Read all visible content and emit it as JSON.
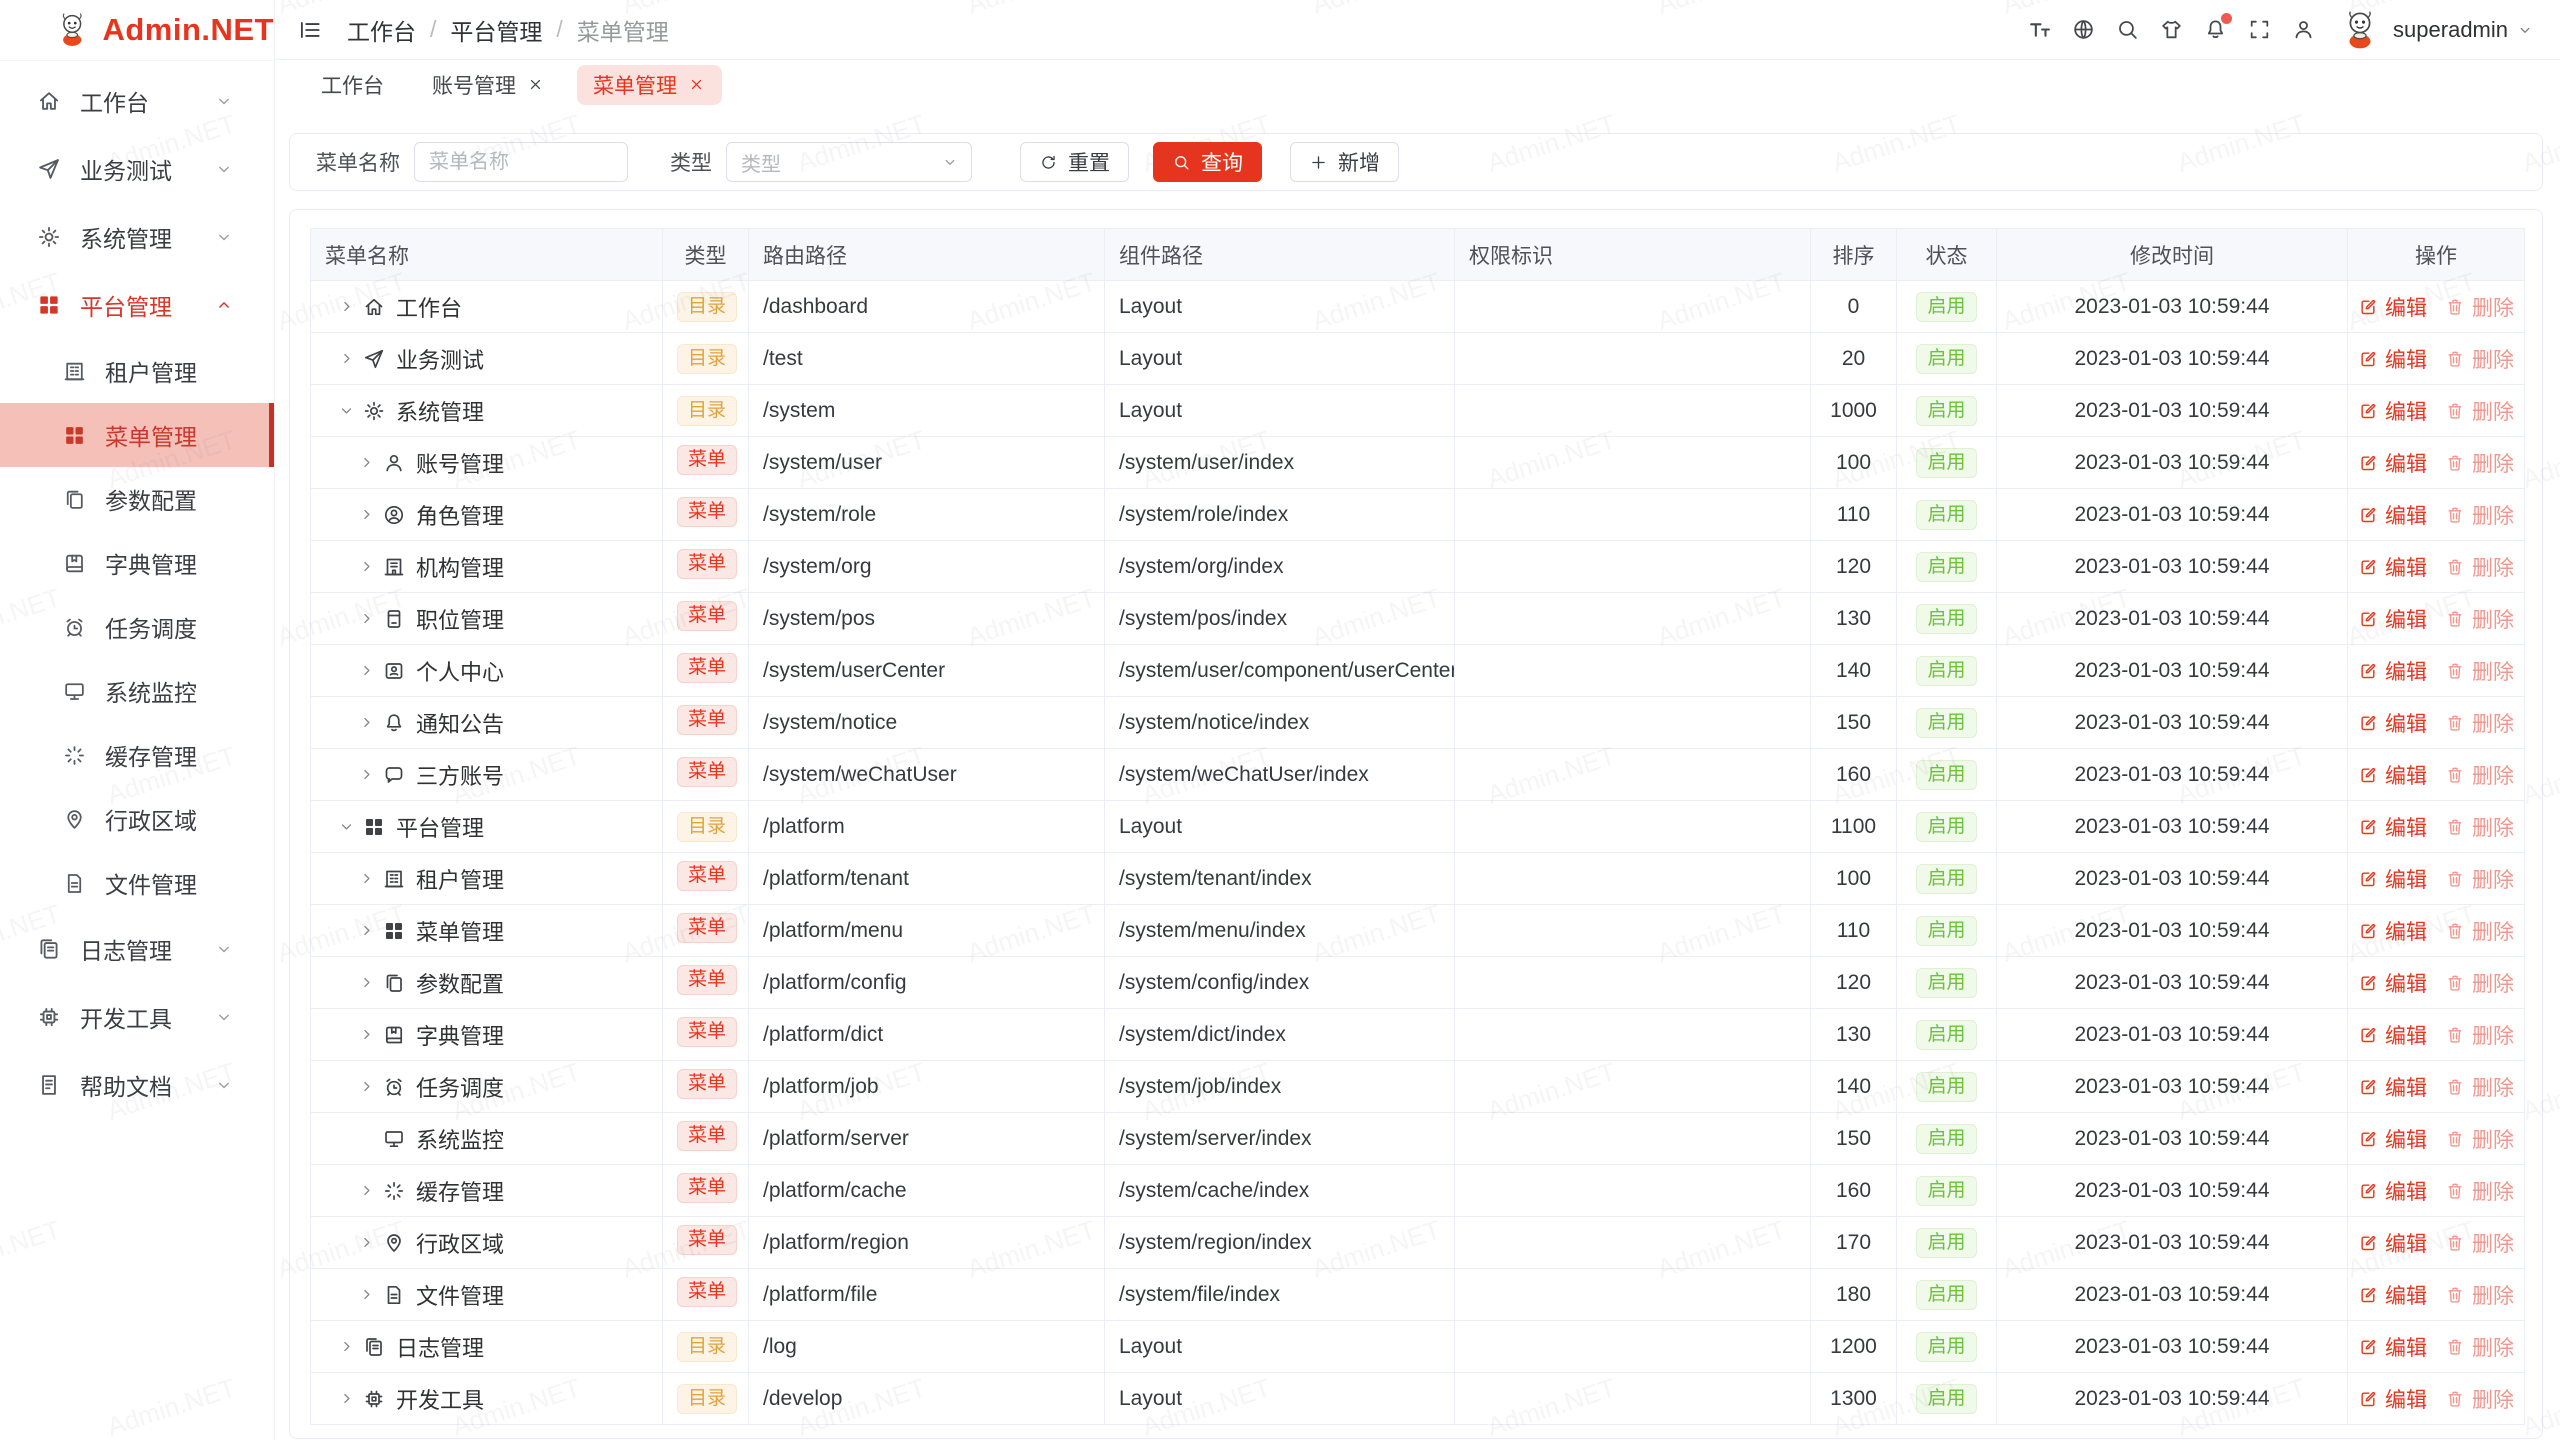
{
  "app": {
    "logo_text": "Admin.NET",
    "watermark": "Admin.NET"
  },
  "colors": {
    "primary": "#e8341f",
    "sidebar_active_bg": "#f4c0b8",
    "tab_active_bg": "#fbe2de",
    "dir_badge": "#e2a23c",
    "menu_badge": "#e8341f",
    "status_enabled": "#6ec23a"
  },
  "sidebar": {
    "items": [
      {
        "label": "工作台",
        "icon": "home",
        "chevron": "down"
      },
      {
        "label": "业务测试",
        "icon": "send",
        "chevron": "down"
      },
      {
        "label": "系统管理",
        "icon": "gear",
        "chevron": "down"
      },
      {
        "label": "平台管理",
        "icon": "grid",
        "chevron": "up",
        "active": true,
        "children": [
          {
            "label": "租户管理",
            "icon": "tenant"
          },
          {
            "label": "菜单管理",
            "icon": "grid",
            "active": true
          },
          {
            "label": "参数配置",
            "icon": "copydoc"
          },
          {
            "label": "字典管理",
            "icon": "book"
          },
          {
            "label": "任务调度",
            "icon": "clock"
          },
          {
            "label": "系统监控",
            "icon": "monitor"
          },
          {
            "label": "缓存管理",
            "icon": "spinner"
          },
          {
            "label": "行政区域",
            "icon": "pin"
          },
          {
            "label": "文件管理",
            "icon": "doc"
          }
        ]
      },
      {
        "label": "日志管理",
        "icon": "logs",
        "chevron": "down"
      },
      {
        "label": "开发工具",
        "icon": "chip",
        "chevron": "down"
      },
      {
        "label": "帮助文档",
        "icon": "help",
        "chevron": "down"
      }
    ]
  },
  "header": {
    "breadcrumb": [
      "工作台",
      "平台管理",
      "菜单管理"
    ],
    "breadcrumb_separator": "/",
    "icons": [
      "font-size",
      "language",
      "search",
      "theme",
      "notification",
      "fullscreen",
      "profile"
    ],
    "user": "superadmin"
  },
  "tabs": [
    {
      "label": "工作台",
      "closable": false,
      "active": false
    },
    {
      "label": "账号管理",
      "closable": true,
      "active": false
    },
    {
      "label": "菜单管理",
      "closable": true,
      "active": true
    }
  ],
  "filter": {
    "name_label": "菜单名称",
    "name_placeholder": "菜单名称",
    "name_value": "",
    "type_label": "类型",
    "type_placeholder": "类型",
    "reset_label": "重置",
    "search_label": "查询",
    "add_label": "新增"
  },
  "table": {
    "columns": [
      "菜单名称",
      "类型",
      "路由路径",
      "组件路径",
      "权限标识",
      "排序",
      "状态",
      "修改时间",
      "操作"
    ],
    "badge_labels": {
      "dir": "目录",
      "menu": "菜单"
    },
    "action_labels": {
      "edit": "编辑",
      "delete": "删除"
    },
    "rows": [
      {
        "name": "工作台",
        "icon": "home",
        "level": 0,
        "arrow": "right",
        "type": "dir",
        "route": "/dashboard",
        "component": "Layout",
        "perm": "",
        "sort": "0",
        "status": "启用",
        "time": "2023-01-03 10:59:44"
      },
      {
        "name": "业务测试",
        "icon": "send",
        "level": 0,
        "arrow": "right",
        "type": "dir",
        "route": "/test",
        "component": "Layout",
        "perm": "",
        "sort": "20",
        "status": "启用",
        "time": "2023-01-03 10:59:44"
      },
      {
        "name": "系统管理",
        "icon": "gear",
        "level": 0,
        "arrow": "down",
        "type": "dir",
        "route": "/system",
        "component": "Layout",
        "perm": "",
        "sort": "1000",
        "status": "启用",
        "time": "2023-01-03 10:59:44"
      },
      {
        "name": "账号管理",
        "icon": "user",
        "level": 1,
        "arrow": "right",
        "type": "menu",
        "route": "/system/user",
        "component": "/system/user/index",
        "perm": "",
        "sort": "100",
        "status": "启用",
        "time": "2023-01-03 10:59:44"
      },
      {
        "name": "角色管理",
        "icon": "usercircle",
        "level": 1,
        "arrow": "right",
        "type": "menu",
        "route": "/system/role",
        "component": "/system/role/index",
        "perm": "",
        "sort": "110",
        "status": "启用",
        "time": "2023-01-03 10:59:44"
      },
      {
        "name": "机构管理",
        "icon": "org",
        "level": 1,
        "arrow": "right",
        "type": "menu",
        "route": "/system/org",
        "component": "/system/org/index",
        "perm": "",
        "sort": "120",
        "status": "启用",
        "time": "2023-01-03 10:59:44"
      },
      {
        "name": "职位管理",
        "icon": "pos",
        "level": 1,
        "arrow": "right",
        "type": "menu",
        "route": "/system/pos",
        "component": "/system/pos/index",
        "perm": "",
        "sort": "130",
        "status": "启用",
        "time": "2023-01-03 10:59:44"
      },
      {
        "name": "个人中心",
        "icon": "idcard",
        "level": 1,
        "arrow": "right",
        "type": "menu",
        "route": "/system/userCenter",
        "component": "/system/user/component/userCenter",
        "perm": "",
        "sort": "140",
        "status": "启用",
        "time": "2023-01-03 10:59:44"
      },
      {
        "name": "通知公告",
        "icon": "bell",
        "level": 1,
        "arrow": "right",
        "type": "menu",
        "route": "/system/notice",
        "component": "/system/notice/index",
        "perm": "",
        "sort": "150",
        "status": "启用",
        "time": "2023-01-03 10:59:44"
      },
      {
        "name": "三方账号",
        "icon": "chat",
        "level": 1,
        "arrow": "right",
        "type": "menu",
        "route": "/system/weChatUser",
        "component": "/system/weChatUser/index",
        "perm": "",
        "sort": "160",
        "status": "启用",
        "time": "2023-01-03 10:59:44"
      },
      {
        "name": "平台管理",
        "icon": "grid",
        "level": 0,
        "arrow": "down",
        "type": "dir",
        "route": "/platform",
        "component": "Layout",
        "perm": "",
        "sort": "1100",
        "status": "启用",
        "time": "2023-01-03 10:59:44"
      },
      {
        "name": "租户管理",
        "icon": "tenant",
        "level": 1,
        "arrow": "right",
        "type": "menu",
        "route": "/platform/tenant",
        "component": "/system/tenant/index",
        "perm": "",
        "sort": "100",
        "status": "启用",
        "time": "2023-01-03 10:59:44"
      },
      {
        "name": "菜单管理",
        "icon": "grid",
        "level": 1,
        "arrow": "right",
        "type": "menu",
        "route": "/platform/menu",
        "component": "/system/menu/index",
        "perm": "",
        "sort": "110",
        "status": "启用",
        "time": "2023-01-03 10:59:44"
      },
      {
        "name": "参数配置",
        "icon": "copydoc",
        "level": 1,
        "arrow": "right",
        "type": "menu",
        "route": "/platform/config",
        "component": "/system/config/index",
        "perm": "",
        "sort": "120",
        "status": "启用",
        "time": "2023-01-03 10:59:44"
      },
      {
        "name": "字典管理",
        "icon": "book",
        "level": 1,
        "arrow": "right",
        "type": "menu",
        "route": "/platform/dict",
        "component": "/system/dict/index",
        "perm": "",
        "sort": "130",
        "status": "启用",
        "time": "2023-01-03 10:59:44"
      },
      {
        "name": "任务调度",
        "icon": "clock",
        "level": 1,
        "arrow": "right",
        "type": "menu",
        "route": "/platform/job",
        "component": "/system/job/index",
        "perm": "",
        "sort": "140",
        "status": "启用",
        "time": "2023-01-03 10:59:44"
      },
      {
        "name": "系统监控",
        "icon": "monitor",
        "level": 1,
        "arrow": "none",
        "type": "menu",
        "route": "/platform/server",
        "component": "/system/server/index",
        "perm": "",
        "sort": "150",
        "status": "启用",
        "time": "2023-01-03 10:59:44"
      },
      {
        "name": "缓存管理",
        "icon": "spinner",
        "level": 1,
        "arrow": "right",
        "type": "menu",
        "route": "/platform/cache",
        "component": "/system/cache/index",
        "perm": "",
        "sort": "160",
        "status": "启用",
        "time": "2023-01-03 10:59:44"
      },
      {
        "name": "行政区域",
        "icon": "pin",
        "level": 1,
        "arrow": "right",
        "type": "menu",
        "route": "/platform/region",
        "component": "/system/region/index",
        "perm": "",
        "sort": "170",
        "status": "启用",
        "time": "2023-01-03 10:59:44"
      },
      {
        "name": "文件管理",
        "icon": "doc",
        "level": 1,
        "arrow": "right",
        "type": "menu",
        "route": "/platform/file",
        "component": "/system/file/index",
        "perm": "",
        "sort": "180",
        "status": "启用",
        "time": "2023-01-03 10:59:44"
      },
      {
        "name": "日志管理",
        "icon": "logs",
        "level": 0,
        "arrow": "right",
        "type": "dir",
        "route": "/log",
        "component": "Layout",
        "perm": "",
        "sort": "1200",
        "status": "启用",
        "time": "2023-01-03 10:59:44"
      },
      {
        "name": "开发工具",
        "icon": "chip",
        "level": 0,
        "arrow": "right",
        "type": "dir",
        "route": "/develop",
        "component": "Layout",
        "perm": "",
        "sort": "1300",
        "status": "启用",
        "time": "2023-01-03 10:59:44"
      }
    ]
  }
}
